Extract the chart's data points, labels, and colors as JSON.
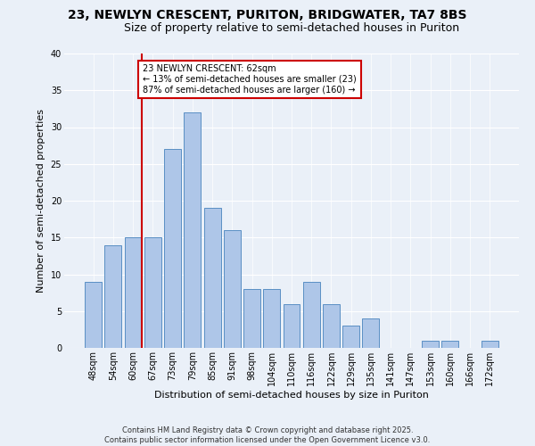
{
  "title": "23, NEWLYN CRESCENT, PURITON, BRIDGWATER, TA7 8BS",
  "subtitle": "Size of property relative to semi-detached houses in Puriton",
  "xlabel": "Distribution of semi-detached houses by size in Puriton",
  "ylabel": "Number of semi-detached properties",
  "categories": [
    "48sqm",
    "54sqm",
    "60sqm",
    "67sqm",
    "73sqm",
    "79sqm",
    "85sqm",
    "91sqm",
    "98sqm",
    "104sqm",
    "110sqm",
    "116sqm",
    "122sqm",
    "129sqm",
    "135sqm",
    "141sqm",
    "147sqm",
    "153sqm",
    "160sqm",
    "166sqm",
    "172sqm"
  ],
  "values": [
    9,
    14,
    15,
    15,
    27,
    32,
    19,
    16,
    8,
    8,
    6,
    9,
    6,
    3,
    4,
    0,
    0,
    1,
    1,
    0,
    1
  ],
  "bar_color": "#aec6e8",
  "bar_edge_color": "#5a8fc4",
  "background_color": "#eaf0f8",
  "grid_color": "#ffffff",
  "annotation_text": "23 NEWLYN CRESCENT: 62sqm\n← 13% of semi-detached houses are smaller (23)\n87% of semi-detached houses are larger (160) →",
  "annotation_box_color": "#ffffff",
  "annotation_box_edge": "#cc0000",
  "vline_color": "#cc0000",
  "ylim": [
    0,
    40
  ],
  "yticks": [
    0,
    5,
    10,
    15,
    20,
    25,
    30,
    35,
    40
  ],
  "footer": "Contains HM Land Registry data © Crown copyright and database right 2025.\nContains public sector information licensed under the Open Government Licence v3.0.",
  "title_fontsize": 10,
  "subtitle_fontsize": 9,
  "xlabel_fontsize": 8,
  "ylabel_fontsize": 8,
  "tick_fontsize": 7,
  "annotation_fontsize": 7,
  "footer_fontsize": 6
}
